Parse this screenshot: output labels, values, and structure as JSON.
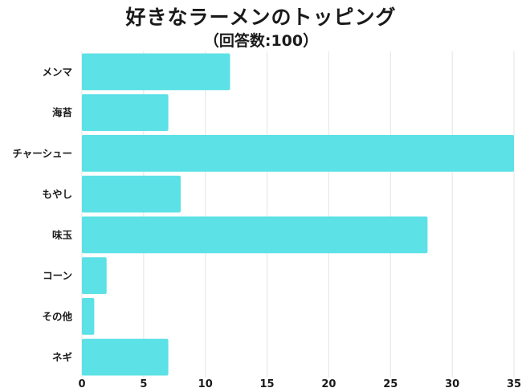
{
  "chart_data": {
    "type": "bar",
    "orientation": "horizontal",
    "title": "好きなラーメンのトッピング",
    "subtitle": "（回答数:100）",
    "categories": [
      "メンマ",
      "海苔",
      "チャーシュー",
      "もやし",
      "味玉",
      "コーン",
      "その他",
      "ネギ"
    ],
    "values": [
      12,
      7,
      35,
      8,
      28,
      2,
      1,
      7
    ],
    "xlim": [
      0,
      35
    ],
    "xticks": [
      0,
      5,
      10,
      15,
      20,
      25,
      30,
      35
    ],
    "grid": true,
    "bar_color": "#5ce1e6",
    "xlabel": "",
    "ylabel": ""
  }
}
